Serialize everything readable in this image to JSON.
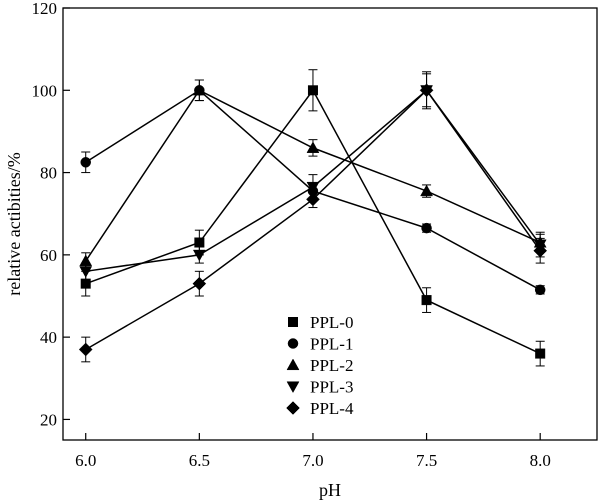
{
  "chart_data": {
    "type": "line",
    "title": "",
    "xlabel": "pH",
    "ylabel": "relative actibities/%",
    "x": [
      6.0,
      6.5,
      7.0,
      7.5,
      8.0
    ],
    "x_tick_labels": [
      "6.0",
      "6.5",
      "7.0",
      "7.5",
      "8.0"
    ],
    "xlim": [
      5.9,
      8.25
    ],
    "ylim": [
      15,
      120
    ],
    "y_ticks": [
      20,
      40,
      60,
      80,
      100,
      120
    ],
    "y_tick_labels": [
      "20",
      "40",
      "60",
      "80",
      "100",
      "120"
    ],
    "grid": false,
    "legend_position": "bottom-center",
    "series": [
      {
        "name": "PPL-0",
        "marker": "square",
        "values": [
          53,
          63,
          100,
          49,
          36
        ],
        "errors": [
          3,
          3,
          5,
          3,
          3
        ]
      },
      {
        "name": "PPL-1",
        "marker": "circle",
        "values": [
          82.5,
          100,
          75.5,
          66.5,
          51.5
        ],
        "errors": [
          2.5,
          2.5,
          2,
          1,
          1
        ]
      },
      {
        "name": "PPL-2",
        "marker": "triangle-up",
        "values": [
          58.5,
          100,
          86,
          75.5,
          63
        ],
        "errors": [
          2,
          2.5,
          2,
          1.5,
          2
        ]
      },
      {
        "name": "PPL-3",
        "marker": "triangle-down",
        "values": [
          56,
          60,
          76.5,
          100,
          62.5
        ],
        "errors": [
          2,
          2,
          3,
          4,
          3
        ]
      },
      {
        "name": "PPL-4",
        "marker": "diamond",
        "values": [
          37,
          53,
          73.5,
          100,
          61
        ],
        "errors": [
          3,
          3,
          2,
          4.5,
          3
        ]
      }
    ]
  }
}
